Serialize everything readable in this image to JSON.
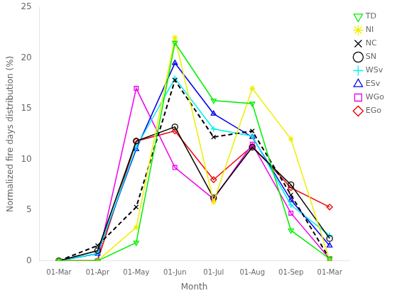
{
  "chart_data": {
    "type": "line",
    "xlabel": "Month",
    "ylabel": "Normalized fire days distribution (%)",
    "categories": [
      "01-Mar",
      "01-Apr",
      "01-May",
      "01-Jun",
      "01-Jul",
      "01-Aug",
      "01-Sep",
      "01-Mar"
    ],
    "ylim": [
      0,
      25
    ],
    "yticks": [
      0,
      5,
      10,
      15,
      20,
      25
    ],
    "grid": false,
    "legend": "upper right",
    "series": [
      {
        "name": "TD",
        "color": "#00ee00",
        "marker": "triangle_down",
        "line_style": "solid",
        "values": [
          0,
          0,
          1.8,
          21.5,
          15.8,
          15.5,
          3.0,
          0.2
        ]
      },
      {
        "name": "NI",
        "color": "#eeee00",
        "marker": "star",
        "line_style": "solid",
        "values": [
          0,
          0,
          3.3,
          22.0,
          5.8,
          17.0,
          12.0,
          0.1
        ]
      },
      {
        "name": "NC",
        "color": "#000000",
        "marker": "x",
        "line_style": "dashed",
        "values": [
          0,
          1.5,
          5.3,
          17.8,
          12.2,
          12.8,
          6.5,
          0.2
        ]
      },
      {
        "name": "SN",
        "color": "#000000",
        "marker": "circle",
        "line_style": "solid",
        "values": [
          0,
          1.0,
          11.8,
          13.2,
          6.2,
          11.2,
          7.5,
          2.2
        ]
      },
      {
        "name": "WSv",
        "color": "#00eeee",
        "marker": "plus",
        "line_style": "solid",
        "values": [
          0,
          0.7,
          11.2,
          18.0,
          13.0,
          12.3,
          5.5,
          2.5
        ]
      },
      {
        "name": "ESv",
        "color": "#0000ee",
        "marker": "triangle_up",
        "line_style": "solid",
        "values": [
          0,
          0.7,
          11.0,
          19.5,
          14.5,
          12.2,
          6.0,
          1.5
        ]
      },
      {
        "name": "WGo",
        "color": "#ee00ee",
        "marker": "square",
        "line_style": "solid",
        "values": [
          0,
          0,
          17.0,
          9.2,
          6.1,
          11.5,
          4.7,
          0.2
        ]
      },
      {
        "name": "EGo",
        "color": "#ee0000",
        "marker": "diamond",
        "line_style": "solid",
        "values": [
          0,
          0,
          11.8,
          12.8,
          8.0,
          11.3,
          7.2,
          5.3
        ]
      }
    ]
  }
}
